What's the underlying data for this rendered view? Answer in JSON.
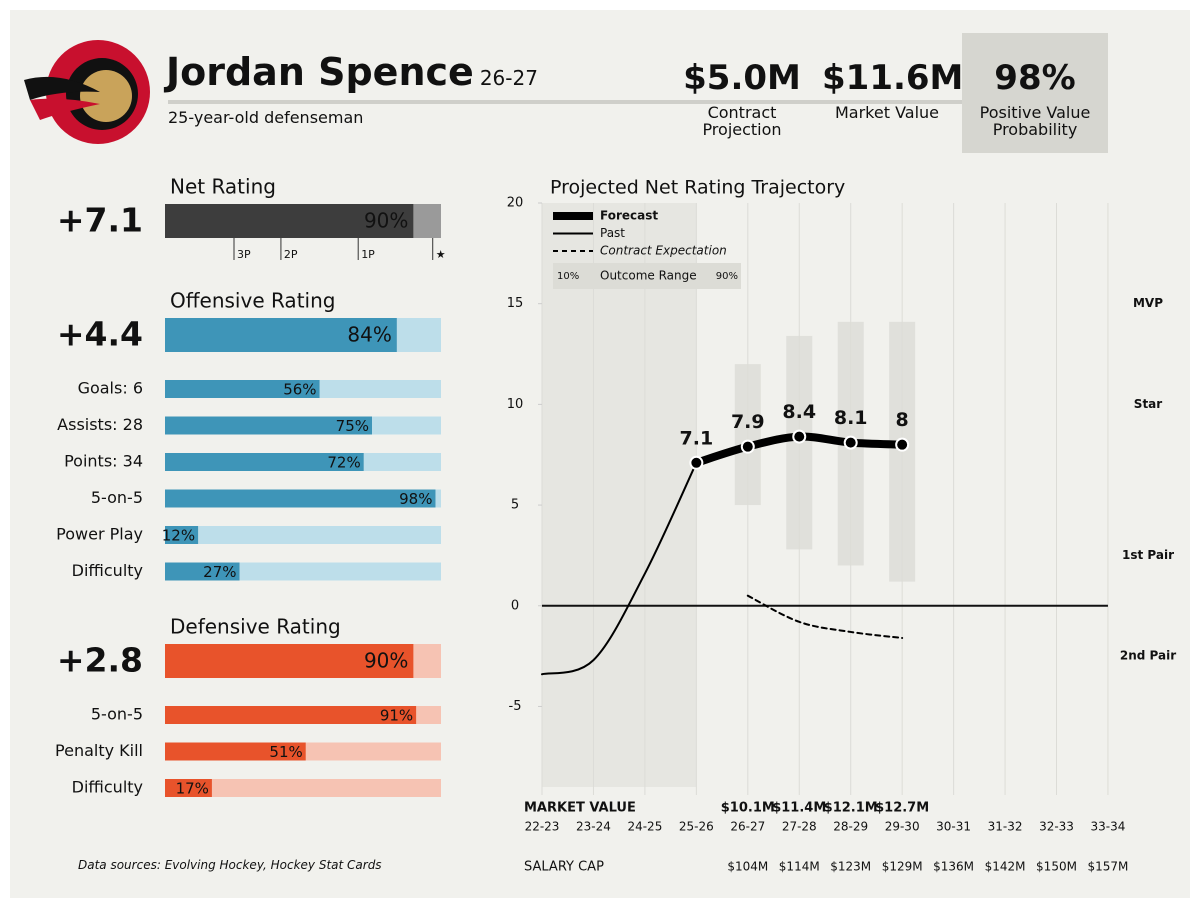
{
  "header": {
    "name": "Jordan Spence",
    "season": "26-27",
    "subtitle": "25-year-old defenseman"
  },
  "stats": [
    {
      "value": "$5.0M",
      "label": "Contract Projection"
    },
    {
      "value": "$11.6M",
      "label": "Market Value"
    },
    {
      "value": "98%",
      "label": "Positive Value Probability"
    }
  ],
  "footer": "Data sources: Evolving Hockey, Hockey Stat Cards",
  "chart_data": [
    {
      "type": "hbar",
      "title": "Net Rating",
      "headline": "+7.1",
      "color": "#3d3d3d",
      "track_color": "#9a9a9a",
      "xlim": [
        0,
        100
      ],
      "total": 90,
      "total_label": "90%",
      "markers": [
        {
          "value": 25,
          "label": "3P"
        },
        {
          "value": 42,
          "label": "2P"
        },
        {
          "value": 70,
          "label": "1P"
        },
        {
          "value": 97,
          "label": "★"
        }
      ],
      "categories": [],
      "values": [],
      "value_labels": []
    },
    {
      "type": "hbar",
      "title": "Offensive Rating",
      "headline": "+4.4",
      "color": "#3e95b8",
      "track_color": "#bddeea",
      "xlim": [
        0,
        100
      ],
      "total": 84,
      "total_label": "84%",
      "categories": [
        "Goals: 6",
        "Assists: 28",
        "Points: 34",
        "5-on-5",
        "Power Play",
        "Difficulty"
      ],
      "values": [
        56,
        75,
        72,
        98,
        12,
        27
      ],
      "value_labels": [
        "56%",
        "75%",
        "72%",
        "98%",
        "12%",
        "27%"
      ]
    },
    {
      "type": "hbar",
      "title": "Defensive Rating",
      "headline": "+2.8",
      "color": "#e8532b",
      "track_color": "#f6c3b3",
      "xlim": [
        0,
        100
      ],
      "total": 90,
      "total_label": "90%",
      "categories": [
        "5-on-5",
        "Penalty Kill",
        "Difficulty"
      ],
      "values": [
        91,
        51,
        17
      ],
      "value_labels": [
        "91%",
        "51%",
        "17%"
      ]
    },
    {
      "type": "line",
      "title": "Projected Net Rating Trajectory",
      "categories": [
        "22-23",
        "23-24",
        "24-25",
        "25-26",
        "26-27",
        "27-28",
        "28-29",
        "29-30",
        "30-31",
        "31-32",
        "32-33",
        "33-34"
      ],
      "ylim": [
        -9,
        20
      ],
      "yticks": [
        -5,
        0,
        5,
        10,
        15,
        20
      ],
      "grid": "vertical",
      "series": [
        {
          "name": "Forecast",
          "color": "#000000",
          "values": [
            null,
            null,
            null,
            7.1,
            7.9,
            8.4,
            8.1,
            8.0,
            null,
            null,
            null,
            null
          ]
        },
        {
          "name": "Past",
          "color": "#000000",
          "values": [
            -3.4,
            -2.7,
            1.6,
            7.1,
            null,
            null,
            null,
            null,
            null,
            null,
            null,
            null
          ]
        },
        {
          "name": "Contract Expectation",
          "color": "#000000",
          "values": [
            null,
            null,
            null,
            null,
            0.5,
            -0.8,
            -1.3,
            -1.6,
            null,
            null,
            null,
            null
          ]
        }
      ],
      "range": {
        "name": "Outcome Range",
        "low_label": "10%",
        "high_label": "90%",
        "color": "#dcdcd6",
        "low": [
          null,
          null,
          null,
          null,
          5.0,
          2.8,
          2.0,
          1.2,
          null,
          null,
          null,
          null
        ],
        "high": [
          null,
          null,
          null,
          null,
          12.0,
          13.4,
          14.1,
          14.1,
          null,
          null,
          null,
          null
        ]
      },
      "tiers": [
        {
          "value": 15,
          "label": "MVP"
        },
        {
          "value": 10,
          "label": "Star"
        },
        {
          "value": 2.5,
          "label": "1st Pair"
        },
        {
          "value": -2.5,
          "label": "2nd Pair"
        }
      ],
      "market_value": {
        "label": "MARKET VALUE",
        "values": [
          null,
          null,
          null,
          null,
          "$10.1M",
          "$11.4M",
          "$12.1M",
          "$12.7M",
          null,
          null,
          null,
          null
        ]
      },
      "salary_cap": {
        "label": "SALARY CAP",
        "values": [
          null,
          null,
          null,
          null,
          "$104M",
          "$114M",
          "$123M",
          "$129M",
          "$136M",
          "$142M",
          "$150M",
          "$157M"
        ]
      }
    }
  ]
}
